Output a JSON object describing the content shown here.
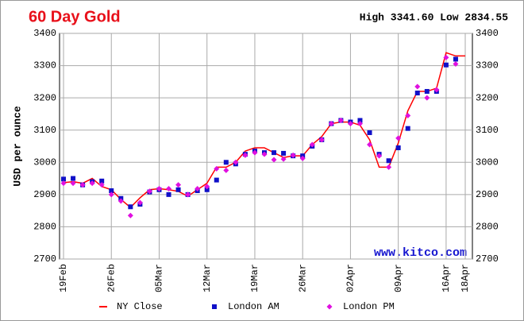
{
  "chart_data": {
    "type": "line",
    "title": "60 Day Gold",
    "subtitle": "High 3341.60 Low 2834.55",
    "y_label": "USD per ounce",
    "watermark": "www.kitco.com",
    "categories": [
      "19Feb",
      null,
      null,
      null,
      null,
      "26Feb",
      null,
      null,
      null,
      null,
      "05Mar",
      null,
      null,
      null,
      null,
      "12Mar",
      null,
      null,
      null,
      null,
      "19Mar",
      null,
      null,
      null,
      null,
      "26Mar",
      null,
      null,
      null,
      null,
      "02Apr",
      null,
      null,
      null,
      null,
      "09Apr",
      null,
      null,
      null,
      null,
      "16Apr",
      null,
      "18Apr"
    ],
    "ylim": [
      2700,
      3400
    ],
    "yticks": [
      2700,
      2800,
      2900,
      3000,
      3100,
      3200,
      3300,
      3400
    ],
    "grid": true,
    "series": [
      {
        "name": "NY Close",
        "color": "#ff0000",
        "style": "line",
        "values": [
          2937,
          2940,
          2935,
          2950,
          2925,
          2915,
          2885,
          2860,
          2890,
          2915,
          2918,
          2915,
          2910,
          2895,
          2915,
          2935,
          2985,
          2985,
          3000,
          3035,
          3045,
          3045,
          3030,
          3015,
          3020,
          3020,
          3055,
          3080,
          3120,
          3125,
          3125,
          3115,
          3070,
          2985,
          2985,
          3060,
          3160,
          3220,
          3220,
          3230,
          3340,
          3330,
          3330
        ]
      },
      {
        "name": "London AM",
        "color": "#1010c8",
        "style": "square",
        "values": [
          2948,
          2950,
          2930,
          2940,
          2942,
          2912,
          2888,
          2862,
          2870,
          2908,
          2915,
          2900,
          2915,
          2900,
          2912,
          2915,
          2945,
          3000,
          2995,
          3025,
          3035,
          3030,
          3030,
          3028,
          3020,
          3020,
          3050,
          3070,
          3120,
          3130,
          3125,
          3130,
          3092,
          3025,
          3005,
          3045,
          3105,
          3215,
          3220,
          3220,
          3302,
          3320,
          null
        ]
      },
      {
        "name": "London PM",
        "color": "#e010e0",
        "style": "diamond",
        "values": [
          2935,
          2935,
          2930,
          2935,
          2930,
          2900,
          2880,
          2835,
          2875,
          2910,
          2918,
          2918,
          2930,
          2900,
          2918,
          2925,
          2980,
          2975,
          3000,
          3022,
          3030,
          3025,
          3008,
          3010,
          3022,
          3012,
          3055,
          3070,
          3120,
          3130,
          3120,
          3120,
          3055,
          3020,
          2985,
          3075,
          3145,
          3235,
          3200,
          3225,
          3325,
          3305,
          null
        ]
      }
    ]
  }
}
